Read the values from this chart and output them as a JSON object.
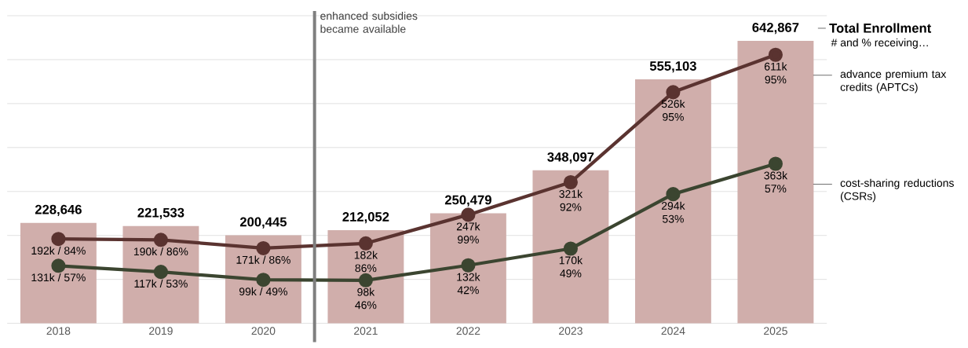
{
  "chart_data": {
    "type": "bar",
    "x": [
      2018,
      2019,
      2020,
      2021,
      2022,
      2023,
      2024,
      2025
    ],
    "xlim": [
      2017.5,
      2025.5
    ],
    "xticks": [
      2018,
      2019,
      2020,
      2021,
      2022,
      2023,
      2024,
      2025
    ],
    "ylim": [
      0,
      700000
    ],
    "yticks": [
      {
        "value": 0,
        "label": null
      },
      {
        "value": 100000,
        "label": null
      },
      {
        "value": 200000,
        "label": null
      },
      {
        "value": 300000,
        "label": null
      },
      {
        "value": 400000,
        "label": null
      },
      {
        "value": 500000,
        "label": null
      },
      {
        "value": 600000,
        "label": null
      },
      {
        "value": 700000,
        "label": null
      }
    ],
    "tick_labels": "x",
    "grid": "y",
    "legend": false,
    "marker": "circle",
    "line_style": "solid",
    "series": [
      {
        "name": "Total Enrollment",
        "color": "#d0aeab",
        "values": [
          228646,
          221533,
          200445,
          212052,
          250479,
          348097,
          555103,
          642867
        ],
        "value_labels": [
          "228,646",
          "221,533",
          "200,445",
          "212,052",
          "250,479",
          "348,097",
          "555,103",
          "642,867"
        ]
      },
      {
        "name": "advance premium tax credits (APTCs)",
        "type": "line",
        "color": "#5a3330",
        "values": [
          192000,
          190000,
          171000,
          182000,
          247000,
          321000,
          526000,
          611000
        ],
        "value_labels": [
          "192k / 84%",
          "190k / 86%",
          "171k / 86%",
          "182k 86%",
          "247k 99%",
          "321k 92%",
          "526k 95%",
          "611k 95%"
        ]
      },
      {
        "name": "cost-sharing reductions (CSRs)",
        "type": "line",
        "color": "#3b4530",
        "values": [
          131000,
          117000,
          99000,
          98000,
          132000,
          170000,
          294000,
          363000
        ],
        "value_labels": [
          "131k / 57%",
          "117k / 53%",
          "99k / 49%",
          "98k 46%",
          "132k 42%",
          "170k 49%",
          "294k 53%",
          "363k 57%"
        ]
      }
    ],
    "ref_lines": [
      {
        "axis": "x",
        "value": 2020.5,
        "label": "enhanced subsidies became available",
        "color": "#7f7f7f"
      }
    ],
    "annotations": [
      "# and % receiving…"
    ]
  }
}
